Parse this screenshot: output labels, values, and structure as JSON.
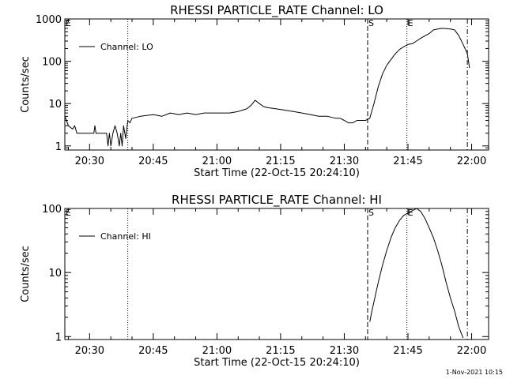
{
  "footer_timestamp": "1-Nov-2021 10:15",
  "chart_data": [
    {
      "type": "line",
      "title": "RHESSI PARTICLE_RATE Channel: LO",
      "xlabel": "Start Time (22-Oct-15 20:24:10)",
      "ylabel": "Counts/sec",
      "yscale": "log",
      "xlim": [
        "20:24:10",
        "22:04:00"
      ],
      "ylim": [
        0.8,
        1000
      ],
      "xticks": [
        "20:30",
        "20:45",
        "21:00",
        "21:15",
        "21:30",
        "21:45",
        "22:00"
      ],
      "yticks": [
        "1",
        "10",
        "100",
        "1000"
      ],
      "legend": {
        "position": "top-left",
        "entries": [
          "Channel: LO"
        ]
      },
      "markers": [
        {
          "time": "20:39:00",
          "style": "dotted",
          "label": ""
        },
        {
          "time": "21:35:30",
          "style": "dashed",
          "label": "S"
        },
        {
          "time": "21:44:45",
          "style": "dotted",
          "label": "E"
        },
        {
          "time": "21:59:00",
          "style": "dashdot",
          "label": ""
        }
      ],
      "corner_label": "E",
      "series": [
        {
          "name": "Channel: LO",
          "x": [
            "20:24:10",
            "20:25:00",
            "20:26:00",
            "20:26:30",
            "20:27:00",
            "20:28:00",
            "20:29:00",
            "20:29:30",
            "20:30:00",
            "20:31:00",
            "20:31:15",
            "20:31:30",
            "20:32:00",
            "20:33:00",
            "20:34:00",
            "20:34:20",
            "20:34:40",
            "20:35:00",
            "20:35:30",
            "20:36:00",
            "20:36:30",
            "20:37:00",
            "20:37:20",
            "20:37:40",
            "20:38:00",
            "20:38:30",
            "20:39:00",
            "20:39:30",
            "20:40:00",
            "20:42:00",
            "20:45:00",
            "20:47:00",
            "20:49:00",
            "20:51:00",
            "20:53:00",
            "20:55:00",
            "20:57:00",
            "21:00:00",
            "21:03:00",
            "21:05:00",
            "21:06:00",
            "21:07:00",
            "21:08:00",
            "21:09:00",
            "21:10:00",
            "21:11:00",
            "21:12:00",
            "21:14:00",
            "21:16:00",
            "21:18:00",
            "21:20:00",
            "21:22:00",
            "21:24:00",
            "21:26:00",
            "21:28:00",
            "21:29:00",
            "21:30:00",
            "21:31:00",
            "21:32:00",
            "21:33:00",
            "21:34:00",
            "21:35:00",
            "21:36:00",
            "21:37:00",
            "21:38:00",
            "21:39:00",
            "21:40:00",
            "21:41:00",
            "21:42:00",
            "21:43:00",
            "21:44:00",
            "21:45:00",
            "21:46:00",
            "21:47:00",
            "21:48:00",
            "21:49:00",
            "21:50:00",
            "21:51:00",
            "21:52:00",
            "21:53:00",
            "21:54:00",
            "21:55:00",
            "21:56:00",
            "21:57:00",
            "21:58:00",
            "21:59:00",
            "21:59:30"
          ],
          "values": [
            5,
            3,
            2.5,
            3,
            2,
            2,
            2,
            2,
            2,
            2,
            3,
            2,
            2,
            2,
            2,
            1,
            2,
            1,
            2,
            3,
            2,
            1,
            2,
            1,
            3,
            1.5,
            4,
            3.5,
            4.5,
            5,
            5.5,
            5,
            6,
            5.5,
            6,
            5.5,
            6,
            6,
            6,
            6.5,
            7,
            7.5,
            9,
            12,
            10,
            8.5,
            8,
            7.5,
            7,
            6.5,
            6,
            5.5,
            5,
            5,
            4.5,
            4.5,
            4,
            3.5,
            3.5,
            4,
            4,
            4,
            4.5,
            10,
            25,
            50,
            80,
            110,
            150,
            190,
            220,
            250,
            260,
            300,
            350,
            400,
            450,
            550,
            580,
            600,
            590,
            580,
            550,
            400,
            250,
            150,
            70
          ]
        }
      ]
    },
    {
      "type": "line",
      "title": "RHESSI PARTICLE_RATE Channel: HI",
      "xlabel": "Start Time (22-Oct-15 20:24:10)",
      "ylabel": "Counts/sec",
      "yscale": "log",
      "xlim": [
        "20:24:10",
        "22:04:00"
      ],
      "ylim": [
        0.9,
        100
      ],
      "xticks": [
        "20:30",
        "20:45",
        "21:00",
        "21:15",
        "21:30",
        "21:45",
        "22:00"
      ],
      "yticks": [
        "1",
        "10",
        "100"
      ],
      "legend": {
        "position": "top-left",
        "entries": [
          "Channel: HI"
        ]
      },
      "markers": [
        {
          "time": "20:39:00",
          "style": "dotted",
          "label": ""
        },
        {
          "time": "21:35:30",
          "style": "dashed",
          "label": "S"
        },
        {
          "time": "21:44:45",
          "style": "dotted",
          "label": "E"
        },
        {
          "time": "21:59:00",
          "style": "dashdot",
          "label": ""
        }
      ],
      "corner_label": "E",
      "series": [
        {
          "name": "Channel: HI",
          "x": [
            "21:36:00",
            "21:36:30",
            "21:37:00",
            "21:38:00",
            "21:39:00",
            "21:40:00",
            "21:41:00",
            "21:42:00",
            "21:43:00",
            "21:44:00",
            "21:45:00",
            "21:46:00",
            "21:47:00",
            "21:48:00",
            "21:49:00",
            "21:50:00",
            "21:51:00",
            "21:52:00",
            "21:53:00",
            "21:54:00",
            "21:55:00",
            "21:56:00",
            "21:57:00",
            "21:58:00"
          ],
          "values": [
            1.7,
            2.5,
            3.5,
            7,
            13,
            22,
            35,
            50,
            65,
            78,
            85,
            92,
            100,
            90,
            70,
            50,
            35,
            22,
            13,
            7,
            4,
            2.5,
            1.4,
            0.95
          ]
        }
      ]
    }
  ]
}
